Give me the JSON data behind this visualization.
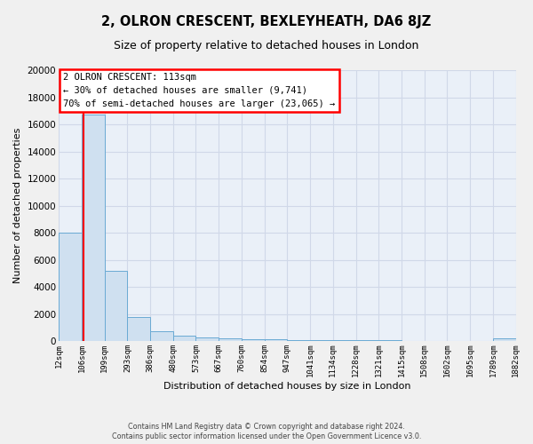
{
  "title": "2, OLRON CRESCENT, BEXLEYHEATH, DA6 8JZ",
  "subtitle": "Size of property relative to detached houses in London",
  "xlabel": "Distribution of detached houses by size in London",
  "ylabel": "Number of detached properties",
  "bar_color": "#cfe0f0",
  "bar_edge_color": "#6aaad4",
  "background_color": "#eaf0f8",
  "grid_color": "#d0d8e8",
  "fig_background": "#f0f0f0",
  "red_line_x": 113,
  "annotation_line1": "2 OLRON CRESCENT: 113sqm",
  "annotation_line2": "← 30% of detached houses are smaller (9,741)",
  "annotation_line3": "70% of semi-detached houses are larger (23,065) →",
  "footer1": "Contains HM Land Registry data © Crown copyright and database right 2024.",
  "footer2": "Contains public sector information licensed under the Open Government Licence v3.0.",
  "bin_edges": [
    12,
    106,
    199,
    293,
    386,
    480,
    573,
    667,
    760,
    854,
    947,
    1041,
    1134,
    1228,
    1321,
    1415,
    1508,
    1602,
    1695,
    1789,
    1882
  ],
  "bar_heights": [
    8000,
    16700,
    5200,
    1750,
    700,
    380,
    260,
    195,
    155,
    115,
    90,
    72,
    58,
    48,
    38,
    30,
    24,
    18,
    14,
    200
  ],
  "ylim": [
    0,
    20000
  ],
  "yticks": [
    0,
    2000,
    4000,
    6000,
    8000,
    10000,
    12000,
    14000,
    16000,
    18000,
    20000
  ]
}
